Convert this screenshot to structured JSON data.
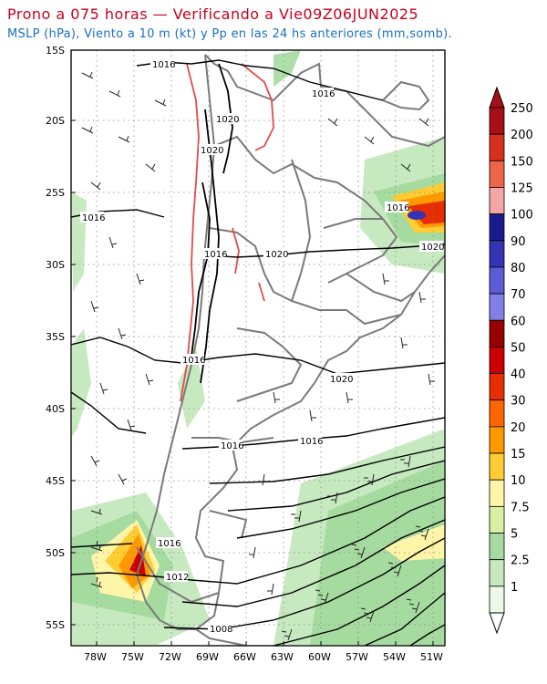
{
  "title": "Prono a 075 horas — Verificando a Vie09Z06JUN2025",
  "subtitle": "MSLP (hPa), Viento a 10 m (kt) y Pp en las 24 hs anteriores (mm,somb).",
  "lat_labels": [
    "15S",
    "20S",
    "25S",
    "30S",
    "35S",
    "40S",
    "45S",
    "50S",
    "55S"
  ],
  "lon_labels": [
    "78W",
    "75W",
    "72W",
    "69W",
    "66W",
    "63W",
    "60W",
    "57W",
    "54W",
    "51W"
  ],
  "isobar_labels": [
    "1016",
    "1016",
    "1020",
    "1020",
    "1016",
    "1016",
    "1020",
    "1016",
    "1020",
    "1016",
    "1016",
    "1020",
    "1016",
    "1012",
    "1008",
    "1016"
  ],
  "colorbar_labels": [
    "250",
    "200",
    "150",
    "125",
    "100",
    "90",
    "80",
    "70",
    "60",
    "50",
    "40",
    "30",
    "20",
    "15",
    "10",
    "7.5",
    "5",
    "2.5",
    "1"
  ],
  "colorbar_colors": [
    "#a50f15",
    "#d7301f",
    "#ef6548",
    "#f4a6a6",
    "#1a1a8c",
    "#3333b3",
    "#5c5cd6",
    "#8080e6",
    "#990000",
    "#cc0000",
    "#e62e00",
    "#ff6600",
    "#ff9900",
    "#ffcc33",
    "#fff5a8",
    "#d9f0a3",
    "#a6dba0",
    "#c7e9c0",
    "#eef8e8"
  ]
}
